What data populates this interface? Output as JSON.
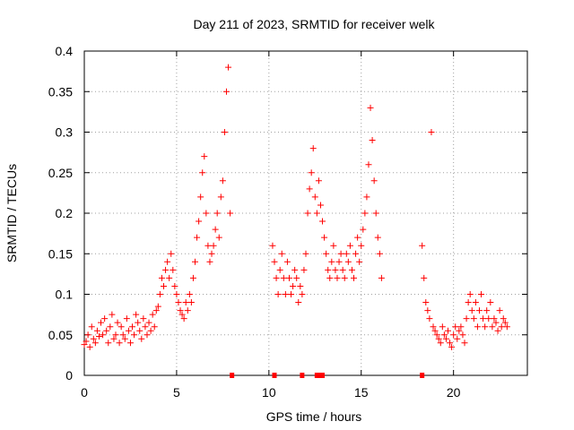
{
  "chart_data": {
    "type": "scatter",
    "title": "Day 211 of 2023, SRMTID for receiver welk",
    "xlabel": "GPS time / hours",
    "ylabel": "SRMTID / TECUs",
    "xlim": [
      0,
      24
    ],
    "ylim": [
      0,
      0.4
    ],
    "xticks": [
      0,
      5,
      10,
      15,
      20
    ],
    "yticks": [
      0,
      0.05,
      0.1,
      0.15,
      0.2,
      0.25,
      0.3,
      0.35,
      0.4
    ],
    "xtick_labels": [
      "0",
      "5",
      "10",
      "15",
      "20"
    ],
    "ytick_labels": [
      "0",
      "0.05",
      "0.1",
      "0.15",
      "0.2",
      "0.25",
      "0.3",
      "0.35",
      "0.4"
    ],
    "grid": true,
    "marker": "+",
    "color": "#ff0000",
    "series": [
      {
        "name": "SRMTID",
        "points": [
          [
            0.0,
            0.038
          ],
          [
            0.1,
            0.042
          ],
          [
            0.2,
            0.05
          ],
          [
            0.3,
            0.035
          ],
          [
            0.4,
            0.06
          ],
          [
            0.5,
            0.045
          ],
          [
            0.6,
            0.04
          ],
          [
            0.7,
            0.055
          ],
          [
            0.8,
            0.048
          ],
          [
            0.9,
            0.065
          ],
          [
            1.0,
            0.05
          ],
          [
            1.1,
            0.07
          ],
          [
            1.2,
            0.055
          ],
          [
            1.3,
            0.04
          ],
          [
            1.4,
            0.06
          ],
          [
            1.5,
            0.075
          ],
          [
            1.6,
            0.045
          ],
          [
            1.7,
            0.05
          ],
          [
            1.8,
            0.065
          ],
          [
            1.9,
            0.04
          ],
          [
            2.0,
            0.06
          ],
          [
            2.1,
            0.05
          ],
          [
            2.2,
            0.045
          ],
          [
            2.3,
            0.07
          ],
          [
            2.4,
            0.055
          ],
          [
            2.5,
            0.04
          ],
          [
            2.6,
            0.06
          ],
          [
            2.7,
            0.05
          ],
          [
            2.8,
            0.075
          ],
          [
            2.9,
            0.065
          ],
          [
            3.0,
            0.055
          ],
          [
            3.1,
            0.045
          ],
          [
            3.2,
            0.07
          ],
          [
            3.3,
            0.06
          ],
          [
            3.4,
            0.05
          ],
          [
            3.5,
            0.065
          ],
          [
            3.6,
            0.055
          ],
          [
            3.7,
            0.075
          ],
          [
            3.8,
            0.06
          ],
          [
            3.9,
            0.08
          ],
          [
            4.0,
            0.085
          ],
          [
            4.1,
            0.1
          ],
          [
            4.2,
            0.12
          ],
          [
            4.3,
            0.11
          ],
          [
            4.4,
            0.13
          ],
          [
            4.5,
            0.14
          ],
          [
            4.6,
            0.12
          ],
          [
            4.7,
            0.15
          ],
          [
            4.8,
            0.13
          ],
          [
            4.9,
            0.11
          ],
          [
            5.0,
            0.1
          ],
          [
            5.1,
            0.09
          ],
          [
            5.2,
            0.08
          ],
          [
            5.3,
            0.075
          ],
          [
            5.4,
            0.07
          ],
          [
            5.5,
            0.09
          ],
          [
            5.6,
            0.08
          ],
          [
            5.7,
            0.1
          ],
          [
            5.8,
            0.09
          ],
          [
            5.9,
            0.12
          ],
          [
            6.0,
            0.14
          ],
          [
            6.1,
            0.17
          ],
          [
            6.2,
            0.19
          ],
          [
            6.3,
            0.22
          ],
          [
            6.4,
            0.25
          ],
          [
            6.5,
            0.27
          ],
          [
            6.6,
            0.2
          ],
          [
            6.7,
            0.16
          ],
          [
            6.8,
            0.14
          ],
          [
            6.9,
            0.15
          ],
          [
            7.0,
            0.16
          ],
          [
            7.1,
            0.18
          ],
          [
            7.2,
            0.2
          ],
          [
            7.3,
            0.17
          ],
          [
            7.4,
            0.22
          ],
          [
            7.5,
            0.24
          ],
          [
            7.6,
            0.3
          ],
          [
            7.7,
            0.35
          ],
          [
            7.8,
            0.38
          ],
          [
            7.9,
            0.2
          ],
          [
            10.2,
            0.16
          ],
          [
            10.3,
            0.14
          ],
          [
            10.4,
            0.12
          ],
          [
            10.5,
            0.1
          ],
          [
            10.6,
            0.13
          ],
          [
            10.7,
            0.15
          ],
          [
            10.8,
            0.12
          ],
          [
            10.9,
            0.1
          ],
          [
            11.0,
            0.14
          ],
          [
            11.1,
            0.12
          ],
          [
            11.2,
            0.1
          ],
          [
            11.3,
            0.11
          ],
          [
            11.4,
            0.13
          ],
          [
            11.5,
            0.12
          ],
          [
            11.6,
            0.09
          ],
          [
            11.7,
            0.11
          ],
          [
            11.8,
            0.1
          ],
          [
            11.9,
            0.13
          ],
          [
            12.0,
            0.15
          ],
          [
            12.1,
            0.2
          ],
          [
            12.2,
            0.23
          ],
          [
            12.3,
            0.25
          ],
          [
            12.4,
            0.28
          ],
          [
            12.5,
            0.22
          ],
          [
            12.6,
            0.2
          ],
          [
            12.7,
            0.24
          ],
          [
            12.8,
            0.21
          ],
          [
            12.9,
            0.19
          ],
          [
            13.0,
            0.17
          ],
          [
            13.1,
            0.15
          ],
          [
            13.2,
            0.13
          ],
          [
            13.3,
            0.12
          ],
          [
            13.4,
            0.14
          ],
          [
            13.5,
            0.16
          ],
          [
            13.6,
            0.13
          ],
          [
            13.7,
            0.12
          ],
          [
            13.8,
            0.14
          ],
          [
            13.9,
            0.15
          ],
          [
            14.0,
            0.13
          ],
          [
            14.1,
            0.12
          ],
          [
            14.2,
            0.15
          ],
          [
            14.3,
            0.14
          ],
          [
            14.4,
            0.16
          ],
          [
            14.5,
            0.13
          ],
          [
            14.6,
            0.12
          ],
          [
            14.7,
            0.15
          ],
          [
            14.8,
            0.17
          ],
          [
            14.9,
            0.14
          ],
          [
            15.0,
            0.16
          ],
          [
            15.1,
            0.18
          ],
          [
            15.2,
            0.2
          ],
          [
            15.3,
            0.22
          ],
          [
            15.4,
            0.26
          ],
          [
            15.5,
            0.33
          ],
          [
            15.6,
            0.29
          ],
          [
            15.7,
            0.24
          ],
          [
            15.8,
            0.2
          ],
          [
            15.9,
            0.17
          ],
          [
            16.0,
            0.15
          ],
          [
            16.1,
            0.12
          ],
          [
            18.3,
            0.16
          ],
          [
            18.4,
            0.12
          ],
          [
            18.5,
            0.09
          ],
          [
            18.6,
            0.08
          ],
          [
            18.7,
            0.07
          ],
          [
            18.8,
            0.3
          ],
          [
            18.9,
            0.06
          ],
          [
            19.0,
            0.055
          ],
          [
            19.1,
            0.05
          ],
          [
            19.2,
            0.045
          ],
          [
            19.3,
            0.04
          ],
          [
            19.4,
            0.06
          ],
          [
            19.5,
            0.05
          ],
          [
            19.6,
            0.045
          ],
          [
            19.7,
            0.055
          ],
          [
            19.8,
            0.04
          ],
          [
            19.9,
            0.035
          ],
          [
            20.0,
            0.05
          ],
          [
            20.1,
            0.06
          ],
          [
            20.2,
            0.045
          ],
          [
            20.3,
            0.055
          ],
          [
            20.4,
            0.06
          ],
          [
            20.5,
            0.05
          ],
          [
            20.6,
            0.04
          ],
          [
            20.7,
            0.07
          ],
          [
            20.8,
            0.09
          ],
          [
            20.9,
            0.1
          ],
          [
            21.0,
            0.08
          ],
          [
            21.1,
            0.07
          ],
          [
            21.2,
            0.09
          ],
          [
            21.3,
            0.06
          ],
          [
            21.4,
            0.08
          ],
          [
            21.5,
            0.1
          ],
          [
            21.6,
            0.07
          ],
          [
            21.7,
            0.06
          ],
          [
            21.8,
            0.08
          ],
          [
            21.9,
            0.07
          ],
          [
            22.0,
            0.09
          ],
          [
            22.1,
            0.06
          ],
          [
            22.2,
            0.07
          ],
          [
            22.3,
            0.065
          ],
          [
            22.4,
            0.055
          ],
          [
            22.5,
            0.08
          ],
          [
            22.6,
            0.06
          ],
          [
            22.7,
            0.07
          ],
          [
            22.8,
            0.065
          ],
          [
            22.9,
            0.06
          ]
        ]
      }
    ],
    "outage_markers_x": [
      8.0,
      10.3,
      11.8,
      12.6,
      12.8,
      12.9,
      18.3
    ]
  }
}
